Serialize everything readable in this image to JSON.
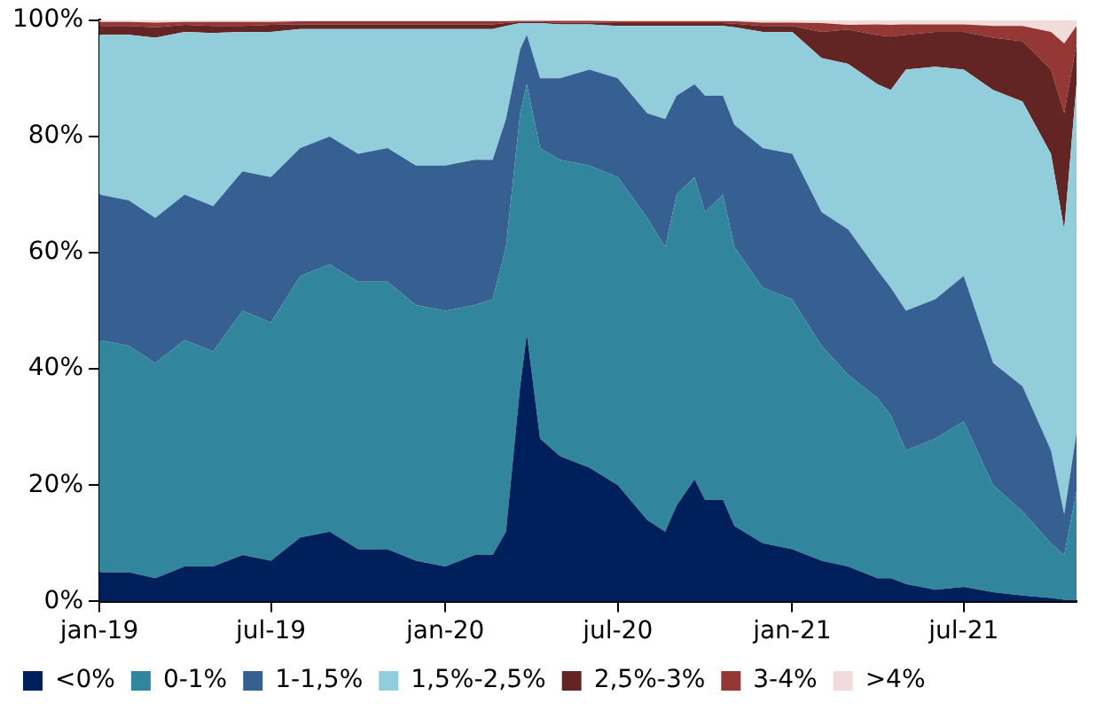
{
  "chart_data": {
    "type": "area",
    "stacked": true,
    "legend": "bottom",
    "grid": false,
    "x": [
      "2019-01-01",
      "2019-02-01",
      "2019-03-01",
      "2019-04-01",
      "2019-05-01",
      "2019-06-01",
      "2019-07-01",
      "2019-08-01",
      "2019-09-01",
      "2019-10-01",
      "2019-11-01",
      "2019-12-01",
      "2020-01-01",
      "2020-02-01",
      "2020-02-20",
      "2020-03-05",
      "2020-03-20",
      "2020-03-27",
      "2020-04-10",
      "2020-05-01",
      "2020-06-01",
      "2020-07-01",
      "2020-08-01",
      "2020-08-20",
      "2020-09-01",
      "2020-09-20",
      "2020-10-01",
      "2020-10-20",
      "2020-11-01",
      "2020-12-01",
      "2021-01-01",
      "2021-02-01",
      "2021-03-01",
      "2021-04-01",
      "2021-04-15",
      "2021-05-01",
      "2021-06-01",
      "2021-07-01",
      "2021-08-01",
      "2021-09-01",
      "2021-10-01",
      "2021-10-15",
      "2021-10-28"
    ],
    "xlim": [
      "2019-01-01",
      "2021-10-28"
    ],
    "xticks": [
      {
        "value": "2019-01-01",
        "label": "jan-19"
      },
      {
        "value": "2019-07-01",
        "label": "jul-19"
      },
      {
        "value": "2020-01-01",
        "label": "jan-20"
      },
      {
        "value": "2020-07-01",
        "label": "jul-20"
      },
      {
        "value": "2021-01-01",
        "label": "jan-21"
      },
      {
        "value": "2021-07-01",
        "label": "jul-21"
      }
    ],
    "ylim": [
      0,
      100
    ],
    "yticks": [
      {
        "value": 0,
        "label": "0%"
      },
      {
        "value": 20,
        "label": "20%"
      },
      {
        "value": 40,
        "label": "40%"
      },
      {
        "value": 60,
        "label": "60%"
      },
      {
        "value": 80,
        "label": "80%"
      },
      {
        "value": 100,
        "label": "100%"
      }
    ],
    "series": [
      {
        "name": "<0%",
        "color": "#00205b",
        "values": [
          5,
          5,
          4,
          6,
          6,
          8,
          7,
          11,
          12,
          9,
          9,
          7,
          6,
          8,
          8,
          12,
          37,
          46,
          28,
          25,
          23,
          20,
          14,
          12,
          16.5,
          21,
          17.5,
          17.5,
          13,
          10,
          9,
          7,
          6,
          4,
          4,
          3,
          2,
          2.5,
          1.6,
          1,
          0.6,
          0.3,
          0.2
        ]
      },
      {
        "name": "0-1%",
        "color": "#31859c",
        "values": [
          40,
          39,
          37,
          39,
          37,
          42,
          41,
          45,
          46,
          46,
          46,
          44,
          44,
          43,
          44,
          49,
          47,
          43,
          50,
          51,
          52,
          53,
          52,
          49,
          53.5,
          52,
          49.5,
          52.5,
          48,
          44,
          43,
          37,
          33,
          31,
          28,
          23,
          26,
          28.5,
          18.4,
          14.5,
          9.4,
          7.7,
          18.8
        ]
      },
      {
        "name": "1-1,5%",
        "color": "#376092",
        "values": [
          25,
          25,
          25,
          25,
          25,
          24,
          25,
          22,
          22,
          22,
          23,
          24,
          25,
          25,
          24,
          22,
          11,
          8.5,
          12,
          14,
          16.5,
          17,
          18,
          22,
          17,
          16,
          20,
          17,
          21,
          24,
          25,
          23,
          25,
          22,
          22,
          24,
          24,
          25,
          21,
          21.5,
          16,
          7,
          10
        ]
      },
      {
        "name": "1,5%-2,5%",
        "color": "#92cddc",
        "values": [
          27.5,
          28.5,
          31,
          28,
          29.8,
          24,
          25,
          20.5,
          18.5,
          21.5,
          20.5,
          23.5,
          23.5,
          22.5,
          22.5,
          16,
          4.5,
          2,
          9.5,
          9.3,
          7.8,
          9,
          15,
          16,
          12,
          10,
          12,
          12,
          16.8,
          20,
          21,
          26.5,
          28.5,
          32,
          34,
          41.5,
          40,
          35.5,
          47,
          49,
          51,
          49,
          60
        ]
      },
      {
        "name": "2,5%-3%",
        "color": "#632523",
        "values": [
          1.5,
          1.5,
          1.8,
          1.2,
          1.2,
          1,
          1.2,
          0.8,
          0.8,
          0.8,
          0.8,
          0.8,
          0.8,
          0.8,
          0.8,
          0.5,
          0.2,
          0.2,
          0.2,
          0.3,
          0.3,
          0.5,
          0.5,
          0.5,
          0.5,
          0.5,
          0.5,
          0.5,
          0.6,
          1,
          1,
          4.5,
          5.9,
          8.4,
          9.2,
          6,
          6,
          6.5,
          9,
          10.4,
          14.5,
          20,
          7
        ]
      },
      {
        "name": "3-4%",
        "color": "#953735",
        "values": [
          0.7,
          0.7,
          0.8,
          0.5,
          0.7,
          0.7,
          0.5,
          0.5,
          0.5,
          0.5,
          0.5,
          0.5,
          0.5,
          0.5,
          0.5,
          0.3,
          0.2,
          0.2,
          0.2,
          0.3,
          0.3,
          0.3,
          0.3,
          0.3,
          0.3,
          0.3,
          0.3,
          0.3,
          0.4,
          0.6,
          0.6,
          1.5,
          0.8,
          1.9,
          2,
          1.8,
          1.3,
          1.3,
          2,
          2.6,
          6.5,
          12,
          3
        ]
      },
      {
        "name": ">4%",
        "color": "#f2dcdb",
        "values": [
          0.3,
          0.3,
          0.4,
          0.3,
          0.3,
          0.3,
          0.3,
          0.2,
          0.2,
          0.2,
          0.2,
          0.2,
          0.2,
          0.2,
          0.2,
          0.2,
          0.1,
          0.1,
          0.1,
          0.1,
          0.1,
          0.2,
          0.2,
          0.2,
          0.2,
          0.2,
          0.2,
          0.2,
          0.2,
          0.4,
          0.4,
          0.5,
          0.8,
          0.7,
          0.8,
          0.7,
          0.7,
          0.7,
          1,
          1,
          2,
          4,
          1
        ]
      }
    ]
  }
}
